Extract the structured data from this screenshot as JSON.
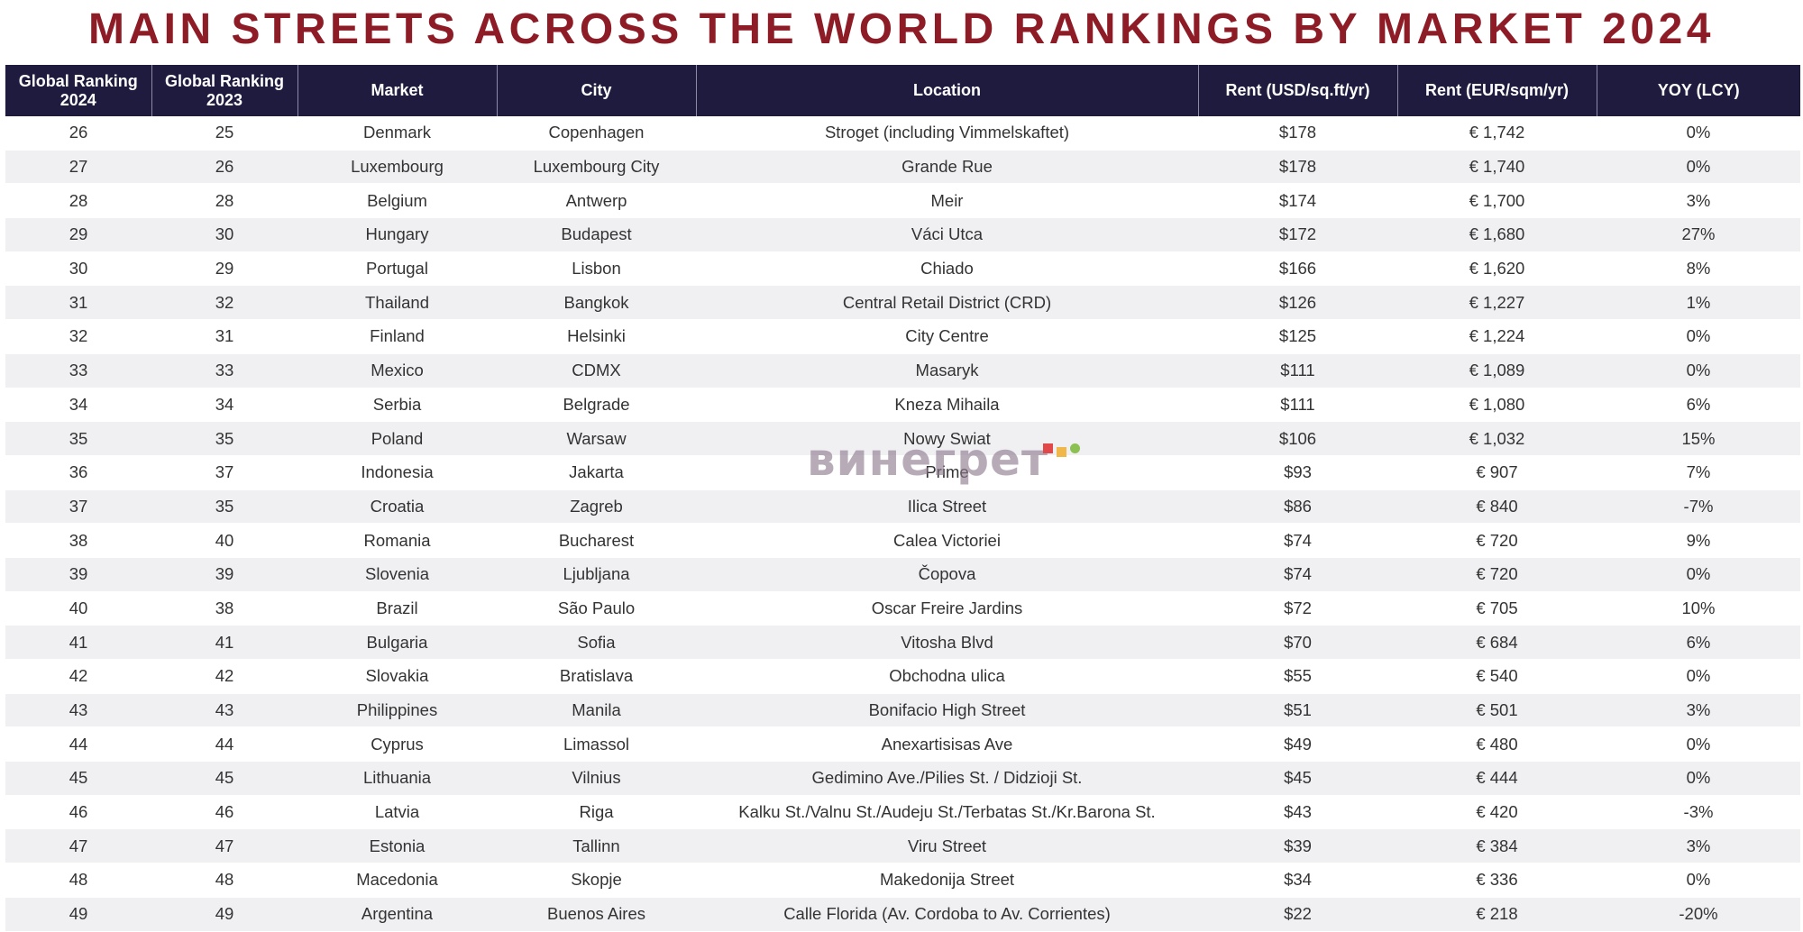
{
  "title": "MAIN STREETS ACROSS THE WORLD RANKINGS BY MARKET 2024",
  "watermark": "винегрет",
  "colors": {
    "title": "#8e1c26",
    "header_bg": "#1e1b3e",
    "row_alt": "#f0f0f3",
    "watermark_dots": [
      "#e0484a",
      "#f0b84a",
      "#8cc050"
    ]
  },
  "table": {
    "headers": [
      "Global Ranking 2024",
      "Global Ranking 2023",
      "Market",
      "City",
      "Location",
      "Rent (USD/sq.ft/yr)",
      "Rent (EUR/sqm/yr)",
      "YOY (LCY)"
    ],
    "rows": [
      [
        "26",
        "25",
        "Denmark",
        "Copenhagen",
        "Stroget (including Vimmelskaftet)",
        "$178",
        "€ 1,742",
        "0%"
      ],
      [
        "27",
        "26",
        "Luxembourg",
        "Luxembourg City",
        "Grande Rue",
        "$178",
        "€ 1,740",
        "0%"
      ],
      [
        "28",
        "28",
        "Belgium",
        "Antwerp",
        "Meir",
        "$174",
        "€ 1,700",
        "3%"
      ],
      [
        "29",
        "30",
        "Hungary",
        "Budapest",
        "Váci Utca",
        "$172",
        "€ 1,680",
        "27%"
      ],
      [
        "30",
        "29",
        "Portugal",
        "Lisbon",
        "Chiado",
        "$166",
        "€ 1,620",
        "8%"
      ],
      [
        "31",
        "32",
        "Thailand",
        "Bangkok",
        "Central Retail District (CRD)",
        "$126",
        "€ 1,227",
        "1%"
      ],
      [
        "32",
        "31",
        "Finland",
        "Helsinki",
        "City Centre",
        "$125",
        "€ 1,224",
        "0%"
      ],
      [
        "33",
        "33",
        "Mexico",
        "CDMX",
        "Masaryk",
        "$111",
        "€ 1,089",
        "0%"
      ],
      [
        "34",
        "34",
        "Serbia",
        "Belgrade",
        "Kneza Mihaila",
        "$111",
        "€ 1,080",
        "6%"
      ],
      [
        "35",
        "35",
        "Poland",
        "Warsaw",
        "Nowy Swiat",
        "$106",
        "€ 1,032",
        "15%"
      ],
      [
        "36",
        "37",
        "Indonesia",
        "Jakarta",
        "Prime",
        "$93",
        "€ 907",
        "7%"
      ],
      [
        "37",
        "35",
        "Croatia",
        "Zagreb",
        "Ilica Street",
        "$86",
        "€ 840",
        "-7%"
      ],
      [
        "38",
        "40",
        "Romania",
        "Bucharest",
        "Calea Victoriei",
        "$74",
        "€ 720",
        "9%"
      ],
      [
        "39",
        "39",
        "Slovenia",
        "Ljubljana",
        "Čopova",
        "$74",
        "€ 720",
        "0%"
      ],
      [
        "40",
        "38",
        "Brazil",
        "São Paulo",
        "Oscar Freire Jardins",
        "$72",
        "€ 705",
        "10%"
      ],
      [
        "41",
        "41",
        "Bulgaria",
        "Sofia",
        "Vitosha Blvd",
        "$70",
        "€ 684",
        "6%"
      ],
      [
        "42",
        "42",
        "Slovakia",
        "Bratislava",
        "Obchodna ulica",
        "$55",
        "€ 540",
        "0%"
      ],
      [
        "43",
        "43",
        "Philippines",
        "Manila",
        "Bonifacio High Street",
        "$51",
        "€ 501",
        "3%"
      ],
      [
        "44",
        "44",
        "Cyprus",
        "Limassol",
        "Anexartisisas Ave",
        "$49",
        "€ 480",
        "0%"
      ],
      [
        "45",
        "45",
        "Lithuania",
        "Vilnius",
        "Gedimino Ave./Pilies St. /  Didzioji St.",
        "$45",
        "€ 444",
        "0%"
      ],
      [
        "46",
        "46",
        "Latvia",
        "Riga",
        "Kalku St./Valnu St./Audeju St./Terbatas St./Kr.Barona St.",
        "$43",
        "€ 420",
        "-3%"
      ],
      [
        "47",
        "47",
        "Estonia",
        "Tallinn",
        "Viru Street",
        "$39",
        "€ 384",
        "3%"
      ],
      [
        "48",
        "48",
        "Macedonia",
        "Skopje",
        "Makedonija Street",
        "$34",
        "€ 336",
        "0%"
      ],
      [
        "49",
        "49",
        "Argentina",
        "Buenos Aires",
        "Calle Florida (Av. Cordoba to Av. Corrientes)",
        "$22",
        "€ 218",
        "-20%"
      ]
    ]
  }
}
